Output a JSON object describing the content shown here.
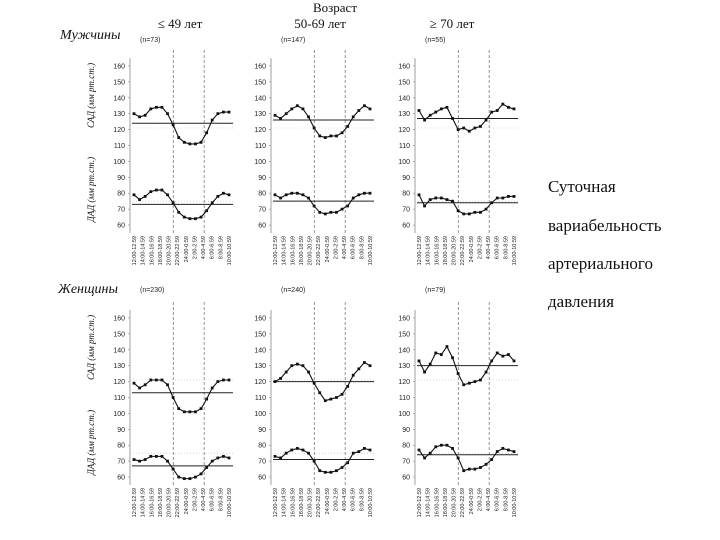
{
  "headers": {
    "age_group_title": "Возраст",
    "col1": "≤ 49 лет",
    "col2": "50-69 лет",
    "col3": "≥ 70 лет"
  },
  "rows": {
    "men": "Мужчины",
    "women": "Женщины"
  },
  "axis_labels": {
    "sad": "САД (мм рт.ст.)",
    "dad": "ДАД (мм рт.ст.)"
  },
  "side_title": [
    "Суточная",
    "вариабельность",
    "артериального",
    "давления"
  ],
  "chart_data": {
    "type": "line",
    "ylim": [
      55,
      165
    ],
    "yticks": [
      60,
      70,
      80,
      90,
      100,
      110,
      120,
      130,
      140,
      150,
      160
    ],
    "x_tick_labels": [
      "12:00-12:59",
      "14:00-14:59",
      "16:00-16:59",
      "18:00-18:59",
      "20:00-20:59",
      "22:00-22:59",
      "24:00-0:59",
      "2:00-2:59",
      "4:00-4:59",
      "6:00-6:59",
      "8:00-8:59",
      "10:00-10:59"
    ],
    "panels": [
      {
        "sex": "Мужчины",
        "age": "≤ 49 лет",
        "n": "(n=73)",
        "sad": [
          130,
          128,
          129,
          133,
          134,
          134,
          130,
          123,
          115,
          112,
          111,
          111,
          112,
          118,
          126,
          130,
          131,
          131
        ],
        "dad": [
          79,
          76,
          78,
          81,
          82,
          82,
          79,
          74,
          68,
          65,
          64,
          64,
          65,
          69,
          74,
          78,
          80,
          79
        ],
        "sad_mean": 124,
        "dad_mean": 73,
        "sad_night": 121,
        "dad_night": 75
      },
      {
        "sex": "Мужчины",
        "age": "50-69 лет",
        "n": "(n=147)",
        "sad": [
          129,
          127,
          130,
          133,
          135,
          133,
          128,
          121,
          116,
          115,
          116,
          116,
          118,
          122,
          128,
          132,
          135,
          133
        ],
        "dad": [
          79,
          77,
          79,
          80,
          80,
          79,
          77,
          72,
          68,
          67,
          68,
          68,
          70,
          72,
          77,
          79,
          80,
          80
        ],
        "sad_mean": 126,
        "dad_mean": 75,
        "sad_night": 121,
        "dad_night": 75
      },
      {
        "sex": "Мужчины",
        "age": "≥ 70 лет",
        "n": "(n=55)",
        "sad": [
          132,
          126,
          129,
          131,
          133,
          134,
          127,
          120,
          121,
          119,
          121,
          122,
          126,
          131,
          132,
          136,
          134,
          133
        ],
        "dad": [
          79,
          72,
          76,
          77,
          77,
          76,
          75,
          69,
          67,
          67,
          68,
          68,
          70,
          74,
          77,
          77,
          78,
          78
        ],
        "sad_mean": 127,
        "dad_mean": 74,
        "sad_night": 121,
        "dad_night": 75
      },
      {
        "sex": "Женщины",
        "age": "≤ 49 лет",
        "n": "(n=230)",
        "sad": [
          119,
          116,
          118,
          121,
          121,
          121,
          118,
          110,
          103,
          101,
          101,
          101,
          103,
          109,
          116,
          120,
          121,
          121
        ],
        "dad": [
          71,
          70,
          71,
          73,
          73,
          73,
          70,
          65,
          60,
          59,
          59,
          60,
          62,
          66,
          70,
          72,
          73,
          72
        ],
        "sad_mean": 113,
        "dad_mean": 67,
        "sad_night": 121,
        "dad_night": 75
      },
      {
        "sex": "Женщины",
        "age": "50-69 лет",
        "n": "(n=240)",
        "sad": [
          120,
          122,
          126,
          130,
          131,
          130,
          126,
          119,
          113,
          108,
          109,
          110,
          112,
          117,
          124,
          128,
          132,
          130
        ],
        "dad": [
          73,
          72,
          75,
          77,
          78,
          77,
          75,
          70,
          64,
          63,
          63,
          64,
          66,
          69,
          75,
          76,
          78,
          77
        ],
        "sad_mean": 120,
        "dad_mean": 71,
        "sad_night": 121,
        "dad_night": 75
      },
      {
        "sex": "Женщины",
        "age": "≥ 70 лет",
        "n": "(n=79)",
        "sad": [
          133,
          126,
          131,
          138,
          137,
          142,
          135,
          125,
          118,
          119,
          120,
          121,
          126,
          133,
          138,
          136,
          137,
          133
        ],
        "dad": [
          77,
          72,
          75,
          79,
          80,
          80,
          78,
          72,
          64,
          65,
          65,
          66,
          68,
          71,
          76,
          78,
          77,
          76
        ],
        "sad_mean": 130,
        "dad_mean": 74,
        "sad_night": 121,
        "dad_night": 75
      }
    ]
  }
}
